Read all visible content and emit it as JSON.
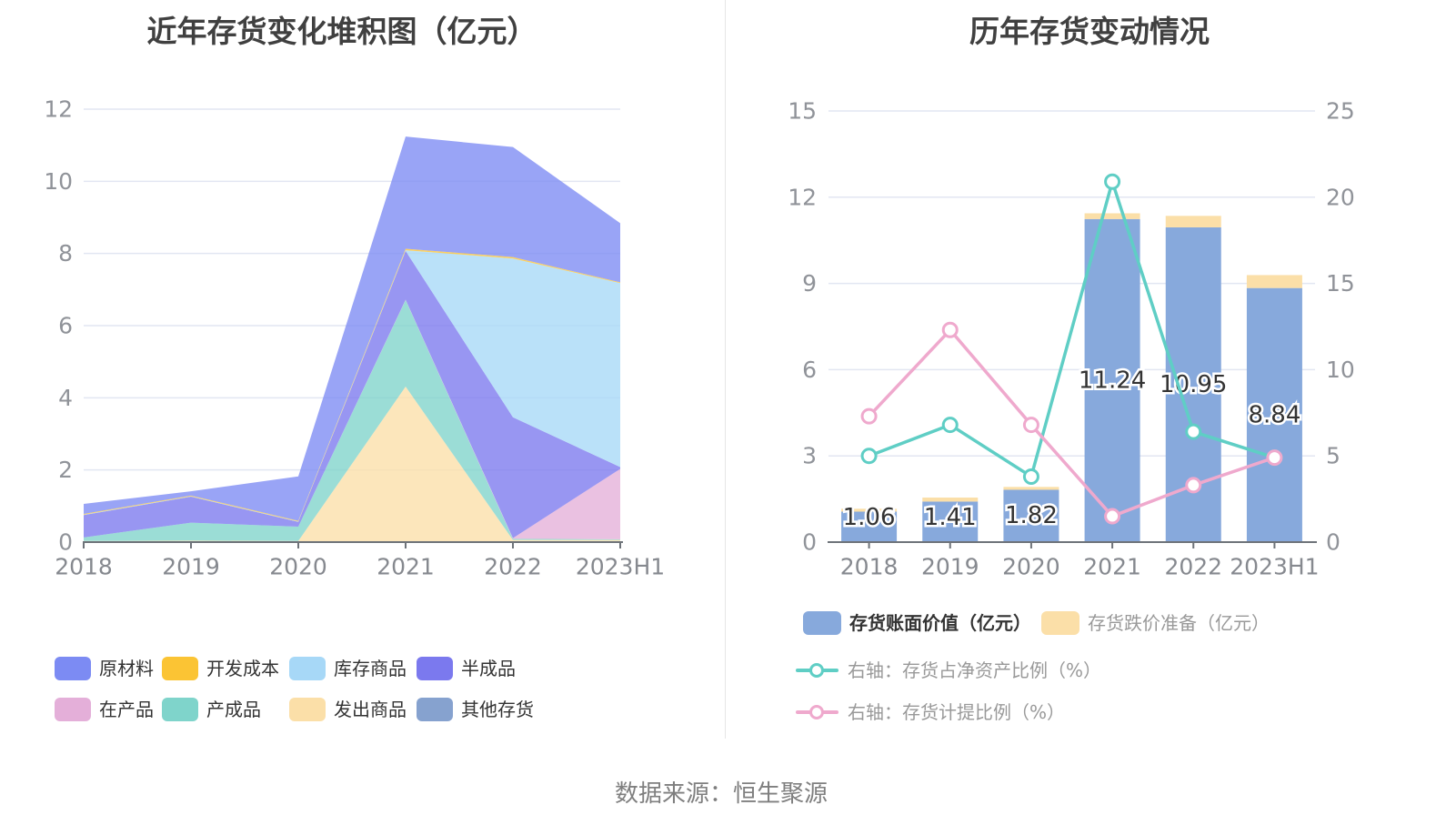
{
  "page": {
    "background": "#ffffff"
  },
  "footer": {
    "text": "数据来源：恒生聚源"
  },
  "chart_data": [
    {
      "id": "inventory-stacked-area",
      "type": "area",
      "title": "近年存货变化堆积图（亿元）",
      "categories": [
        "2018",
        "2019",
        "2020",
        "2021",
        "2022",
        "2023H1"
      ],
      "ylim": [
        0,
        12
      ],
      "y_ticks": [
        0,
        2,
        4,
        6,
        8,
        10,
        12
      ],
      "grid": true,
      "legend_position": "bottom",
      "legend_order": [
        "原材料",
        "开发成本",
        "库存商品",
        "半成品",
        "在产品",
        "产成品",
        "发出商品",
        "其他存货"
      ],
      "area_opacity": 0.78,
      "series": [
        {
          "id": "other-inventory",
          "name": "其他存货",
          "color": "#86A2CF",
          "values": [
            0.01,
            0.01,
            0.01,
            0.01,
            0.01,
            0.02
          ]
        },
        {
          "id": "goods-dispatched",
          "name": "发出商品",
          "color": "#FBDFA8",
          "values": [
            0.02,
            0.03,
            0.02,
            4.3,
            0.05,
            0.04
          ]
        },
        {
          "id": "finished-goods",
          "name": "产成品",
          "color": "#7FD4CB",
          "values": [
            0.1,
            0.5,
            0.4,
            2.4,
            0.03,
            0.02
          ]
        },
        {
          "id": "work-in-progress",
          "name": "在产品",
          "color": "#E4AFD9",
          "values": [
            0.0,
            0.0,
            0.0,
            0.01,
            0.02,
            1.95
          ]
        },
        {
          "id": "semi-finished",
          "name": "半成品",
          "color": "#7B79EE",
          "values": [
            0.62,
            0.72,
            0.13,
            1.35,
            3.35,
            0.05
          ]
        },
        {
          "id": "stock-goods",
          "name": "库存商品",
          "color": "#A7D8F7",
          "values": [
            0.01,
            0.01,
            0.01,
            0.02,
            4.4,
            5.1
          ]
        },
        {
          "id": "development-cost",
          "name": "开发成本",
          "color": "#FBC434",
          "values": [
            0.02,
            0.02,
            0.02,
            0.04,
            0.04,
            0.02
          ]
        },
        {
          "id": "raw-materials",
          "name": "原材料",
          "color": "#7C8BF3",
          "values": [
            0.28,
            0.12,
            1.23,
            3.11,
            3.05,
            1.64
          ]
        }
      ]
    },
    {
      "id": "inventory-change-combo",
      "type": "bar",
      "title": "历年存货变动情况",
      "categories": [
        "2018",
        "2019",
        "2020",
        "2021",
        "2022",
        "2023H1"
      ],
      "left_axis": {
        "ylim": [
          0,
          15
        ],
        "ticks": [
          0,
          3,
          6,
          9,
          12,
          15
        ]
      },
      "right_axis": {
        "ylim": [
          0,
          25
        ],
        "ticks": [
          0,
          5,
          10,
          15,
          20,
          25
        ]
      },
      "grid": true,
      "legend_position": "bottom",
      "series": [
        {
          "id": "book-value",
          "name": "存货账面价值（亿元）",
          "type": "bar",
          "axis": "left",
          "color": "#87A9DC",
          "values": [
            1.06,
            1.41,
            1.82,
            11.24,
            10.95,
            8.84
          ],
          "show_labels": true,
          "legend_text_color": "#333333",
          "legend_text_weight": 600
        },
        {
          "id": "writedown-provision",
          "name": "存货跌价准备（亿元）",
          "type": "bar",
          "axis": "left",
          "stacked_on": "book-value",
          "color": "#FBDFA8",
          "values": [
            0.1,
            0.14,
            0.1,
            0.2,
            0.4,
            0.45
          ],
          "show_labels": false,
          "legend_text_color": "#999999",
          "legend_text_weight": 400
        },
        {
          "id": "net-asset-ratio",
          "name": "右轴：存货占净资产比例（%）",
          "type": "line",
          "axis": "right",
          "color": "#5FCEC5",
          "values": [
            5.0,
            6.8,
            3.8,
            20.9,
            6.4,
            4.9
          ],
          "legend_text_color": "#999999",
          "legend_text_weight": 400
        },
        {
          "id": "provision-ratio",
          "name": "右轴：存货计提比例（%）",
          "type": "line",
          "axis": "right",
          "color": "#EFA9CD",
          "values": [
            7.3,
            12.3,
            6.8,
            1.5,
            3.3,
            4.9
          ],
          "legend_text_color": "#999999",
          "legend_text_weight": 400
        }
      ]
    }
  ],
  "styles": {
    "title_color": "#404040",
    "axis_label_color": "#909399",
    "x_label_color": "#86898F",
    "grid_color": "#E2E6F2",
    "axis_line_color": "#6E7379",
    "bar_label_color": "#333333",
    "bar_label_halo": "#FFFFFF",
    "legend_text_color": "#333333",
    "footer_color": "#7F7F7F",
    "divider_color": "#E6E6E6"
  }
}
